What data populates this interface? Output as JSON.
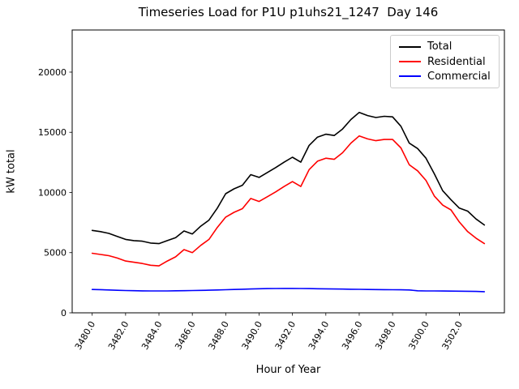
{
  "chart_data": {
    "type": "line",
    "title": "Timeseries Load for P1U p1uhs21_1247  Day 146",
    "xlabel": "Hour of Year",
    "ylabel": "kW total",
    "grid": false,
    "legend_position": "upper right",
    "xlim": [
      3478.8,
      3504.7
    ],
    "ylim": [
      0,
      23500
    ],
    "xticks": {
      "values": [
        3480,
        3482,
        3484,
        3486,
        3488,
        3490,
        3492,
        3494,
        3496,
        3498,
        3500,
        3502
      ],
      "labels": [
        "3480.0",
        "3482.0",
        "3484.0",
        "3486.0",
        "3488.0",
        "3490.0",
        "3492.0",
        "3494.0",
        "3496.0",
        "3498.0",
        "3500.0",
        "3502.0"
      ],
      "rotation_deg": 60
    },
    "yticks": {
      "values": [
        0,
        5000,
        10000,
        15000,
        20000
      ],
      "labels": [
        "0",
        "5000",
        "10000",
        "15000",
        "20000"
      ]
    },
    "x": [
      3480.0,
      3480.5,
      3481.0,
      3481.5,
      3482.0,
      3482.5,
      3483.0,
      3483.5,
      3484.0,
      3484.5,
      3485.0,
      3485.5,
      3486.0,
      3486.5,
      3487.0,
      3487.5,
      3488.0,
      3488.5,
      3489.0,
      3489.5,
      3490.0,
      3490.5,
      3491.0,
      3491.5,
      3492.0,
      3492.5,
      3493.0,
      3493.5,
      3494.0,
      3494.5,
      3495.0,
      3495.5,
      3496.0,
      3496.5,
      3497.0,
      3497.5,
      3498.0,
      3498.5,
      3499.0,
      3499.5,
      3500.0,
      3500.5,
      3501.0,
      3501.5,
      3502.0,
      3502.5,
      3503.0,
      3503.5
    ],
    "series": [
      {
        "name": "Total",
        "color": "#000000",
        "values": [
          6850,
          6750,
          6600,
          6350,
          6100,
          6000,
          5950,
          5800,
          5750,
          6000,
          6250,
          6800,
          6550,
          7200,
          7700,
          8700,
          9900,
          10300,
          10600,
          11480,
          11250,
          11660,
          12070,
          12520,
          12930,
          12520,
          13910,
          14600,
          14840,
          14730,
          15270,
          16060,
          16650,
          16390,
          16230,
          16330,
          16280,
          15500,
          14100,
          13650,
          12850,
          11550,
          10150,
          9400,
          8700,
          8450,
          7800,
          7300
        ]
      },
      {
        "name": "Residential",
        "color": "#ff0000",
        "values": [
          4950,
          4850,
          4750,
          4550,
          4300,
          4200,
          4100,
          3950,
          3900,
          4300,
          4650,
          5250,
          5000,
          5600,
          6100,
          7100,
          7950,
          8350,
          8650,
          9500,
          9250,
          9650,
          10050,
          10500,
          10900,
          10500,
          11900,
          12600,
          12850,
          12750,
          13300,
          14100,
          14700,
          14450,
          14300,
          14400,
          14400,
          13700,
          12300,
          11800,
          11000,
          9700,
          8950,
          8550,
          7550,
          6750,
          6200,
          5750
        ]
      },
      {
        "name": "Commercial",
        "color": "#0000ff",
        "values": [
          1940,
          1925,
          1900,
          1870,
          1850,
          1835,
          1825,
          1820,
          1815,
          1820,
          1830,
          1840,
          1850,
          1865,
          1880,
          1900,
          1920,
          1940,
          1960,
          1980,
          2000,
          2010,
          2020,
          2025,
          2030,
          2020,
          2010,
          2000,
          1990,
          1980,
          1970,
          1960,
          1950,
          1940,
          1930,
          1925,
          1920,
          1910,
          1900,
          1830,
          1820,
          1815,
          1810,
          1805,
          1800,
          1790,
          1780,
          1760
        ]
      }
    ]
  }
}
